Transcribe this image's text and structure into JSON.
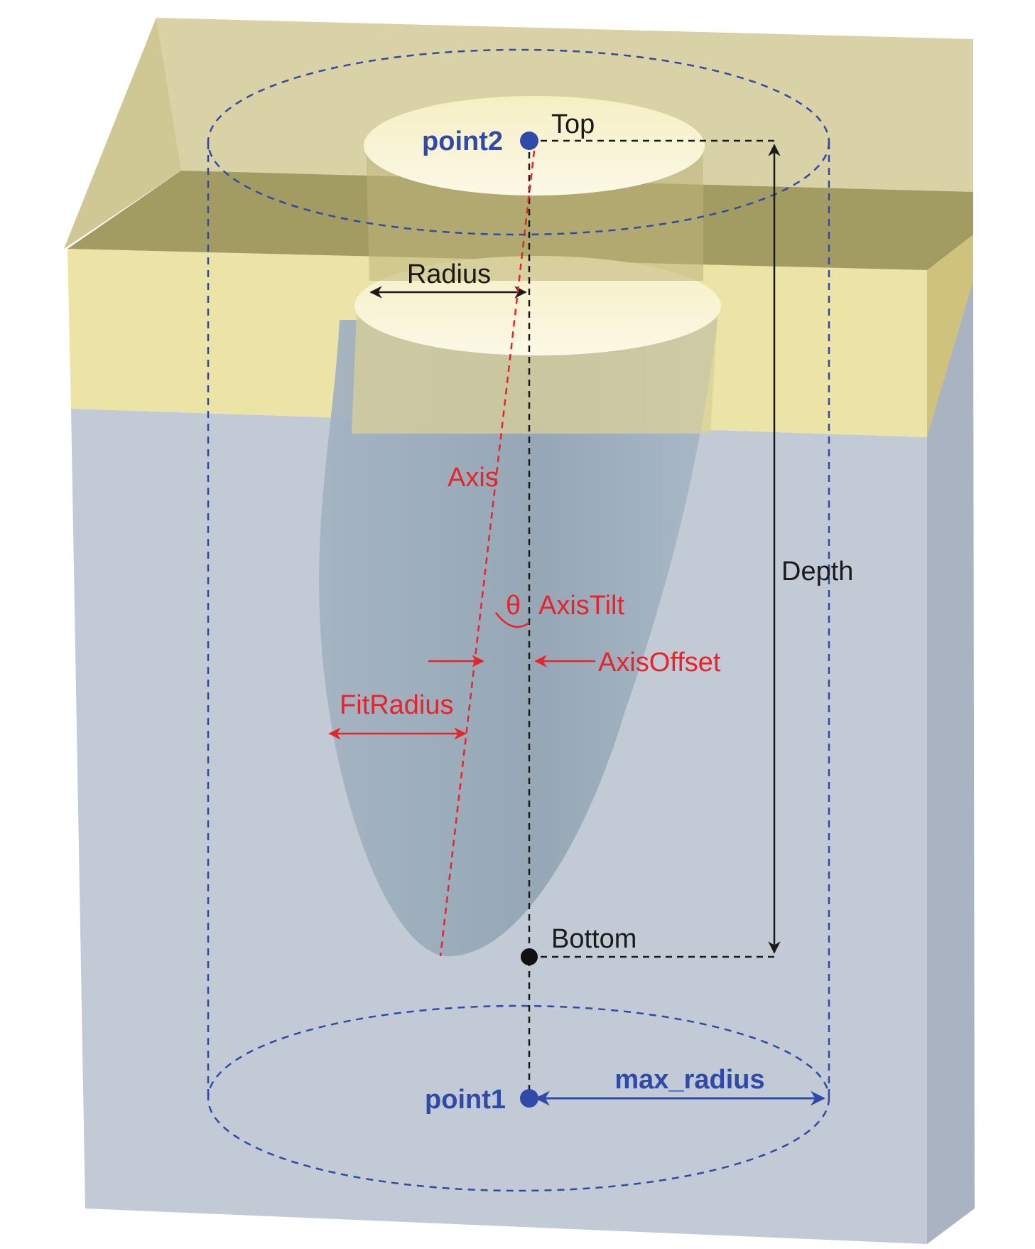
{
  "labels": {
    "point2": "point2",
    "top": "Top",
    "radius": "Radius",
    "axis": "Axis",
    "depth": "Depth",
    "theta": "θ",
    "axis_tilt": "AxisTilt",
    "axis_offset": "AxisOffset",
    "fit_radius": "FitRadius",
    "bottom": "Bottom",
    "max_radius": "max_radius",
    "point1": "point1"
  },
  "colors": {
    "black_annotation": "#1a1a1a",
    "red_annotation": "#e8232a",
    "blue_annotation": "#2f4aa8",
    "substrate_blue_gray": "#c2cad6",
    "top_layer_tan": "#ece3a6",
    "dark_band": "#a29c62",
    "hole_volume": "#9fb0bf"
  }
}
